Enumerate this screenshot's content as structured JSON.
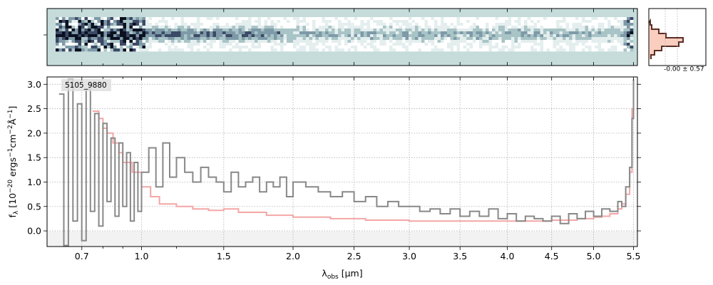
{
  "chart_data": {
    "type": "line",
    "object_label": "5105_9880",
    "xlabel": "λobs [μm]",
    "xlabel_main": "λ",
    "xlabel_sub": "obs",
    "xlabel_unit": " [μm]",
    "ylabel": "fλ [10−20 ergs−1cm−2Å−1]",
    "ylabel_main": "f",
    "ylabel_sub": "λ",
    "ylabel_unit": " [10",
    "ylabel_exp1": "−20",
    "ylabel_mid": " ergs",
    "ylabel_exp2": "−1",
    "ylabel_mid2": "cm",
    "ylabel_exp3": "−2",
    "ylabel_mid3": "Å",
    "ylabel_exp4": "−1",
    "ylabel_end": "]",
    "x_ticks": [
      0.7,
      0.8,
      0.9,
      1.0,
      1.2,
      1.5,
      2.0,
      2.5,
      3.0,
      3.5,
      4.0,
      4.5,
      5.0,
      5.5
    ],
    "x_tick_labels": [
      "0.7",
      "",
      "",
      "1.0",
      "",
      "1.5",
      "2.0",
      "2.5",
      "3.0",
      "3.5",
      "4.0",
      "4.5",
      "5.0",
      "5.5"
    ],
    "y_ticks": [
      0.0,
      0.5,
      1.0,
      1.5,
      2.0,
      2.5,
      3.0
    ],
    "y_tick_labels": [
      "0.0",
      "0.5",
      "1.0",
      "1.5",
      "2.0",
      "2.5",
      "3.0"
    ],
    "xlim": [
      0.55,
      5.55
    ],
    "ylim": [
      -0.32,
      3.15
    ],
    "grid": true,
    "series": [
      {
        "role": "data",
        "color": "#888888",
        "x": [
          0.6,
          0.62,
          0.64,
          0.66,
          0.68,
          0.7,
          0.72,
          0.74,
          0.76,
          0.78,
          0.8,
          0.82,
          0.84,
          0.86,
          0.88,
          0.9,
          0.92,
          0.94,
          0.96,
          0.98,
          1.0,
          1.04,
          1.08,
          1.12,
          1.16,
          1.2,
          1.25,
          1.3,
          1.35,
          1.4,
          1.45,
          1.5,
          1.55,
          1.6,
          1.65,
          1.7,
          1.75,
          1.8,
          1.85,
          1.9,
          1.95,
          2.0,
          2.1,
          2.2,
          2.3,
          2.4,
          2.5,
          2.6,
          2.7,
          2.8,
          2.9,
          3.0,
          3.1,
          3.2,
          3.3,
          3.4,
          3.5,
          3.6,
          3.7,
          3.8,
          3.9,
          4.0,
          4.1,
          4.2,
          4.3,
          4.4,
          4.5,
          4.6,
          4.7,
          4.8,
          4.9,
          5.0,
          5.1,
          5.2,
          5.3,
          5.35,
          5.4,
          5.45,
          5.48,
          5.5
        ],
        "y": [
          2.8,
          -0.3,
          3.1,
          0.2,
          2.6,
          -0.2,
          2.9,
          0.4,
          2.4,
          0.1,
          2.2,
          0.6,
          1.9,
          0.3,
          1.8,
          0.5,
          1.6,
          0.2,
          1.4,
          0.4,
          1.2,
          1.7,
          0.9,
          1.8,
          1.1,
          1.5,
          1.2,
          1.0,
          1.3,
          1.1,
          1.0,
          0.8,
          1.2,
          0.9,
          1.0,
          1.1,
          0.8,
          1.0,
          0.9,
          1.1,
          0.7,
          1.0,
          0.9,
          0.8,
          0.7,
          0.8,
          0.6,
          0.7,
          0.5,
          0.6,
          0.5,
          0.5,
          0.4,
          0.45,
          0.35,
          0.45,
          0.3,
          0.4,
          0.3,
          0.45,
          0.25,
          0.35,
          0.2,
          0.3,
          0.25,
          0.2,
          0.3,
          0.15,
          0.35,
          0.25,
          0.4,
          0.3,
          0.45,
          0.4,
          0.6,
          0.5,
          0.9,
          1.3,
          2.3,
          3.1
        ]
      },
      {
        "role": "model",
        "color": "#f4a6a6",
        "x": [
          0.75,
          0.78,
          0.8,
          0.82,
          0.85,
          0.88,
          0.9,
          0.95,
          1.0,
          1.05,
          1.1,
          1.2,
          1.3,
          1.4,
          1.5,
          1.6,
          1.8,
          2.0,
          2.3,
          2.6,
          3.0,
          3.5,
          4.0,
          4.5,
          4.8,
          5.0,
          5.1,
          5.2,
          5.3,
          5.35,
          5.4,
          5.45,
          5.48,
          5.5
        ],
        "y": [
          2.45,
          2.3,
          2.1,
          2.0,
          1.8,
          1.6,
          1.4,
          1.2,
          0.9,
          0.7,
          0.55,
          0.5,
          0.45,
          0.42,
          0.45,
          0.38,
          0.32,
          0.28,
          0.25,
          0.22,
          0.2,
          0.2,
          0.2,
          0.22,
          0.25,
          0.28,
          0.3,
          0.35,
          0.45,
          0.55,
          0.75,
          1.2,
          2.5,
          3.1
        ]
      }
    ],
    "inset_label": "-0.00 ± 0.57"
  },
  "colors": {
    "data_line": "#888888",
    "model_line": "#f4a6a6",
    "twod_background": "#c5dcdb",
    "histogram_fill": "#f9c9b8",
    "histogram_line": "#5a2e24"
  }
}
